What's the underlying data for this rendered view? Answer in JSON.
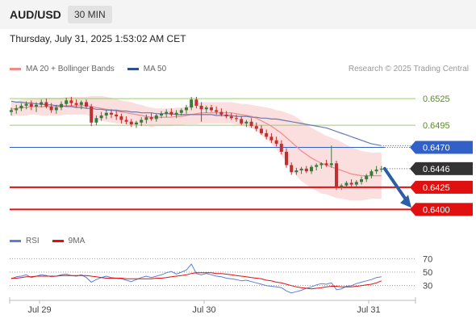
{
  "header": {
    "symbol": "AUD/USD",
    "timeframe": "30 MIN"
  },
  "datetime": "Thursday, July 31, 2025 1:53:02 AM CET",
  "legend": [
    {
      "label": "MA 20 + Bollinger Bands",
      "color": "#f08c8c"
    },
    {
      "label": "MA 50",
      "color": "#2d4f8a"
    }
  ],
  "credit": "Research © 2025 Trading Central",
  "rsi_legend": [
    {
      "label": "RSI",
      "color": "#5b7fd6"
    },
    {
      "label": "9MA",
      "color": "#e01010"
    }
  ],
  "colors": {
    "resistance": "#9acd70",
    "support": "#e01010",
    "pivot": "#3060c8",
    "bull": "#3c7a3c",
    "bear": "#c03030",
    "band": "#f9d0d0",
    "ma20": "#f08c8c",
    "ma50": "#6a7ab0",
    "arrow": "#2a5fa8"
  },
  "chart_data": {
    "type": "candlestick",
    "ylim": [
      0.6383,
      0.6547
    ],
    "x_ticks": [
      "Jul 29",
      "Jul 30",
      "Jul 31"
    ],
    "levels": [
      {
        "value": 0.6525,
        "label": "0.6525",
        "kind": "resistance"
      },
      {
        "value": 0.6495,
        "label": "0.6495",
        "kind": "resistance"
      },
      {
        "value": 0.647,
        "label": "0.6470",
        "kind": "pivot"
      },
      {
        "value": 0.6446,
        "label": "0.6446",
        "kind": "current"
      },
      {
        "value": 0.6425,
        "label": "0.6425",
        "kind": "support"
      },
      {
        "value": 0.64,
        "label": "0.6400",
        "kind": "support"
      }
    ],
    "candles": [
      [
        0.651,
        0.6515,
        0.6506,
        0.6512
      ],
      [
        0.6512,
        0.6518,
        0.6508,
        0.6514
      ],
      [
        0.6514,
        0.652,
        0.6511,
        0.6517
      ],
      [
        0.6517,
        0.6522,
        0.6513,
        0.6519
      ],
      [
        0.6519,
        0.6523,
        0.6512,
        0.6516
      ],
      [
        0.6516,
        0.6521,
        0.651,
        0.6518
      ],
      [
        0.6518,
        0.6524,
        0.6515,
        0.6521
      ],
      [
        0.6521,
        0.6525,
        0.6514,
        0.6516
      ],
      [
        0.6516,
        0.652,
        0.6509,
        0.6512
      ],
      [
        0.6512,
        0.6518,
        0.6508,
        0.6515
      ],
      [
        0.6515,
        0.6522,
        0.6512,
        0.6519
      ],
      [
        0.6519,
        0.6526,
        0.6516,
        0.6523
      ],
      [
        0.6523,
        0.6527,
        0.6517,
        0.652
      ],
      [
        0.652,
        0.6524,
        0.6515,
        0.6518
      ],
      [
        0.6518,
        0.6523,
        0.6513,
        0.6521
      ],
      [
        0.6521,
        0.6524,
        0.6514,
        0.6516
      ],
      [
        0.6516,
        0.6519,
        0.6494,
        0.6498
      ],
      [
        0.6498,
        0.6506,
        0.6495,
        0.6503
      ],
      [
        0.6503,
        0.651,
        0.65,
        0.6506
      ],
      [
        0.6506,
        0.6512,
        0.6502,
        0.6509
      ],
      [
        0.6509,
        0.6513,
        0.6503,
        0.6507
      ],
      [
        0.6507,
        0.6511,
        0.6501,
        0.6505
      ],
      [
        0.6505,
        0.6508,
        0.6497,
        0.6501
      ],
      [
        0.6501,
        0.6505,
        0.6496,
        0.6499
      ],
      [
        0.6499,
        0.6502,
        0.6493,
        0.6496
      ],
      [
        0.6496,
        0.65,
        0.6492,
        0.6498
      ],
      [
        0.6498,
        0.6504,
        0.6494,
        0.6501
      ],
      [
        0.6501,
        0.6507,
        0.6497,
        0.6504
      ],
      [
        0.6504,
        0.6509,
        0.65,
        0.6502
      ],
      [
        0.6502,
        0.6508,
        0.6499,
        0.6506
      ],
      [
        0.6506,
        0.6511,
        0.6503,
        0.6508
      ],
      [
        0.6508,
        0.6513,
        0.6504,
        0.651
      ],
      [
        0.651,
        0.6514,
        0.6505,
        0.6507
      ],
      [
        0.6507,
        0.6512,
        0.6503,
        0.6509
      ],
      [
        0.6509,
        0.6514,
        0.6506,
        0.6512
      ],
      [
        0.6512,
        0.6518,
        0.6508,
        0.6515
      ],
      [
        0.6515,
        0.6527,
        0.6512,
        0.6524
      ],
      [
        0.6524,
        0.6527,
        0.6514,
        0.6517
      ],
      [
        0.6517,
        0.6521,
        0.6499,
        0.6513
      ],
      [
        0.6513,
        0.6517,
        0.6509,
        0.6515
      ],
      [
        0.6515,
        0.6518,
        0.651,
        0.6512
      ],
      [
        0.6512,
        0.6516,
        0.6507,
        0.651
      ],
      [
        0.651,
        0.6514,
        0.6505,
        0.6507
      ],
      [
        0.6507,
        0.6511,
        0.6503,
        0.6505
      ],
      [
        0.6505,
        0.6509,
        0.6501,
        0.6503
      ],
      [
        0.6503,
        0.6507,
        0.6499,
        0.6502
      ],
      [
        0.6502,
        0.6505,
        0.6495,
        0.6497
      ],
      [
        0.6497,
        0.6501,
        0.6493,
        0.6499
      ],
      [
        0.6499,
        0.6503,
        0.6492,
        0.6494
      ],
      [
        0.6494,
        0.6498,
        0.6488,
        0.6491
      ],
      [
        0.6491,
        0.6495,
        0.6484,
        0.6486
      ],
      [
        0.6486,
        0.649,
        0.6479,
        0.6482
      ],
      [
        0.6482,
        0.6486,
        0.6475,
        0.6478
      ],
      [
        0.6478,
        0.6482,
        0.6471,
        0.6474
      ],
      [
        0.6474,
        0.6478,
        0.6462,
        0.6465
      ],
      [
        0.6465,
        0.6469,
        0.6447,
        0.645
      ],
      [
        0.645,
        0.6453,
        0.6439,
        0.6442
      ],
      [
        0.6442,
        0.6447,
        0.6439,
        0.6444
      ],
      [
        0.6444,
        0.6448,
        0.644,
        0.6446
      ],
      [
        0.6446,
        0.6449,
        0.6441,
        0.6443
      ],
      [
        0.6443,
        0.645,
        0.644,
        0.6448
      ],
      [
        0.6448,
        0.6452,
        0.6444,
        0.645
      ],
      [
        0.645,
        0.6453,
        0.6446,
        0.6452
      ],
      [
        0.6452,
        0.6456,
        0.6448,
        0.645
      ],
      [
        0.645,
        0.6472,
        0.6447,
        0.6452
      ],
      [
        0.6452,
        0.6455,
        0.6422,
        0.6425
      ],
      [
        0.6425,
        0.6429,
        0.6422,
        0.6427
      ],
      [
        0.6427,
        0.6432,
        0.6424,
        0.643
      ],
      [
        0.643,
        0.6434,
        0.6426,
        0.6428
      ],
      [
        0.6428,
        0.6433,
        0.6425,
        0.6431
      ],
      [
        0.6431,
        0.6437,
        0.6428,
        0.6434
      ],
      [
        0.6434,
        0.644,
        0.6431,
        0.6438
      ],
      [
        0.6438,
        0.6445,
        0.6435,
        0.6443
      ],
      [
        0.6443,
        0.6449,
        0.644,
        0.6445
      ],
      [
        0.6445,
        0.6449,
        0.6442,
        0.6446
      ]
    ],
    "ma20": [
      0.6513,
      0.6514,
      0.6515,
      0.6515,
      0.6516,
      0.6516,
      0.6516,
      0.6516,
      0.6516,
      0.6516,
      0.6516,
      0.6517,
      0.6517,
      0.6517,
      0.6517,
      0.6517,
      0.6516,
      0.6515,
      0.6514,
      0.6513,
      0.6512,
      0.6511,
      0.651,
      0.6509,
      0.6508,
      0.6507,
      0.6506,
      0.6505,
      0.6504,
      0.6504,
      0.6504,
      0.6504,
      0.6504,
      0.6505,
      0.6505,
      0.6506,
      0.6507,
      0.6508,
      0.6509,
      0.6509,
      0.6509,
      0.6509,
      0.6509,
      0.6509,
      0.6509,
      0.6508,
      0.6507,
      0.6506,
      0.6505,
      0.6503,
      0.65,
      0.6497,
      0.6494,
      0.649,
      0.6486,
      0.6481,
      0.6476,
      0.6471,
      0.6466,
      0.6462,
      0.6458,
      0.6455,
      0.6452,
      0.645,
      0.6448,
      0.6446,
      0.6444,
      0.6442,
      0.644,
      0.6439,
      0.6438,
      0.6438,
      0.6438,
      0.6438,
      0.6438
    ],
    "bb_width": [
      0.0008,
      0.0008,
      0.0009,
      0.0009,
      0.0009,
      0.0009,
      0.001,
      0.001,
      0.001,
      0.001,
      0.001,
      0.001,
      0.001,
      0.001,
      0.001,
      0.001,
      0.0012,
      0.0013,
      0.0014,
      0.0014,
      0.0014,
      0.0014,
      0.0013,
      0.0013,
      0.0013,
      0.0012,
      0.0012,
      0.0011,
      0.0011,
      0.001,
      0.001,
      0.001,
      0.001,
      0.001,
      0.001,
      0.001,
      0.0011,
      0.0012,
      0.0012,
      0.0012,
      0.0012,
      0.0012,
      0.0012,
      0.0012,
      0.0012,
      0.0012,
      0.0012,
      0.0013,
      0.0013,
      0.0014,
      0.0016,
      0.0018,
      0.002,
      0.0022,
      0.0025,
      0.0028,
      0.0031,
      0.0033,
      0.0034,
      0.0034,
      0.0034,
      0.0034,
      0.0034,
      0.0033,
      0.0033,
      0.0033,
      0.0032,
      0.0031,
      0.003,
      0.0029,
      0.0028,
      0.0027,
      0.0026,
      0.0026,
      0.0026
    ],
    "ma50": [
      0.6522,
      0.6521,
      0.6521,
      0.652,
      0.652,
      0.6519,
      0.6519,
      0.6518,
      0.6518,
      0.6517,
      0.6517,
      0.6516,
      0.6516,
      0.6515,
      0.6515,
      0.6514,
      0.6514,
      0.6513,
      0.6513,
      0.6512,
      0.6512,
      0.6512,
      0.6511,
      0.6511,
      0.651,
      0.651,
      0.6509,
      0.6509,
      0.6509,
      0.6508,
      0.6508,
      0.6508,
      0.6508,
      0.6507,
      0.6507,
      0.6507,
      0.6507,
      0.6507,
      0.6507,
      0.6507,
      0.6507,
      0.6506,
      0.6506,
      0.6506,
      0.6506,
      0.6505,
      0.6505,
      0.6505,
      0.6504,
      0.6504,
      0.6503,
      0.6503,
      0.6502,
      0.6502,
      0.6501,
      0.65,
      0.6499,
      0.6498,
      0.6497,
      0.6496,
      0.6495,
      0.6494,
      0.6493,
      0.6492,
      0.649,
      0.6488,
      0.6486,
      0.6484,
      0.6482,
      0.648,
      0.6478,
      0.6476,
      0.6474,
      0.6473,
      0.6472
    ],
    "projection": {
      "from": 0.6446,
      "to": 0.64
    },
    "rsi": {
      "ylim": [
        20,
        80
      ],
      "levels": [
        70,
        50,
        30
      ],
      "values": [
        40,
        43,
        44,
        46,
        42,
        44,
        46,
        45,
        43,
        44,
        46,
        47,
        45,
        44,
        46,
        42,
        35,
        39,
        42,
        44,
        42,
        41,
        40,
        38,
        36,
        39,
        42,
        44,
        42,
        44,
        46,
        49,
        51,
        47,
        50,
        53,
        62,
        48,
        46,
        48,
        46,
        44,
        43,
        41,
        40,
        39,
        37,
        38,
        36,
        34,
        32,
        30,
        29,
        28,
        27,
        22,
        19,
        21,
        23,
        26,
        28,
        31,
        33,
        32,
        34,
        24,
        25,
        29,
        30,
        33,
        35,
        37,
        39,
        42,
        43
      ],
      "ma9": [
        41,
        41,
        42,
        43,
        43,
        44,
        44,
        44,
        44,
        44,
        45,
        45,
        45,
        45,
        45,
        45,
        44,
        43,
        42,
        41,
        41,
        41,
        41,
        40,
        40,
        40,
        40,
        40,
        40,
        41,
        41,
        42,
        43,
        44,
        45,
        46,
        48,
        49,
        49,
        49,
        49,
        48,
        48,
        47,
        46,
        45,
        44,
        43,
        42,
        41,
        40,
        38,
        37,
        35,
        34,
        32,
        30,
        28,
        27,
        26,
        25,
        26,
        27,
        28,
        29,
        29,
        28,
        28,
        28,
        29,
        30,
        31,
        32,
        34,
        37
      ]
    }
  }
}
